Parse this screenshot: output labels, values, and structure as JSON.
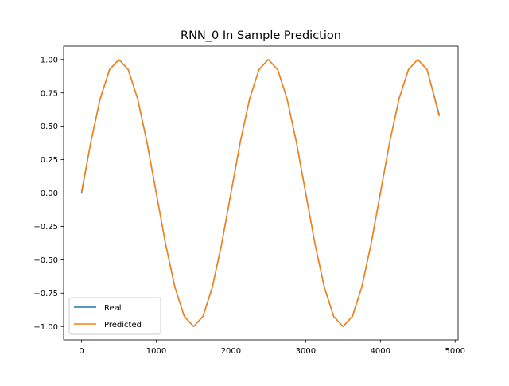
{
  "chart_data": {
    "type": "line",
    "title": "RNN_0 In Sample Prediction",
    "xlabel": "",
    "ylabel": "",
    "xlim": [
      -240,
      5040
    ],
    "ylim": [
      -1.1,
      1.1
    ],
    "x_ticks": [
      0,
      1000,
      2000,
      3000,
      4000,
      5000
    ],
    "x_tick_labels": [
      "0",
      "1000",
      "2000",
      "3000",
      "4000",
      "5000"
    ],
    "y_ticks": [
      1.0,
      0.75,
      0.5,
      0.25,
      0.0,
      -0.25,
      -0.5,
      -0.75,
      -1.0
    ],
    "y_tick_labels": [
      "1.00",
      "0.75",
      "0.50",
      "0.25",
      "0.00",
      "−0.25",
      "−0.50",
      "−0.75",
      "−1.00"
    ],
    "grid": false,
    "legend_position": "lower-left",
    "series": [
      {
        "name": "Real",
        "color": "#1f77b4",
        "x": [
          0,
          125,
          250,
          375,
          500,
          625,
          750,
          875,
          1000,
          1125,
          1250,
          1375,
          1500,
          1625,
          1750,
          1875,
          2000,
          2125,
          2250,
          2375,
          2500,
          2625,
          2750,
          2875,
          3000,
          3125,
          3250,
          3375,
          3500,
          3625,
          3750,
          3875,
          4000,
          4125,
          4250,
          4375,
          4500,
          4625,
          4785
        ],
        "y": [
          0.0,
          0.383,
          0.707,
          0.924,
          1.0,
          0.924,
          0.707,
          0.383,
          0.0,
          -0.383,
          -0.707,
          -0.924,
          -1.0,
          -0.924,
          -0.707,
          -0.383,
          0.0,
          0.383,
          0.707,
          0.924,
          1.0,
          0.924,
          0.707,
          0.383,
          0.0,
          -0.383,
          -0.707,
          -0.924,
          -1.0,
          -0.924,
          -0.707,
          -0.383,
          0.0,
          0.383,
          0.707,
          0.924,
          1.0,
          0.924,
          0.59
        ]
      },
      {
        "name": "Predicted",
        "color": "#ff7f0e",
        "x": [
          0,
          125,
          250,
          375,
          500,
          625,
          750,
          875,
          1000,
          1125,
          1250,
          1375,
          1500,
          1625,
          1750,
          1875,
          2000,
          2125,
          2250,
          2375,
          2500,
          2625,
          2750,
          2875,
          3000,
          3125,
          3250,
          3375,
          3500,
          3625,
          3750,
          3875,
          4000,
          4125,
          4250,
          4375,
          4500,
          4625,
          4785
        ],
        "y": [
          0.01,
          0.383,
          0.707,
          0.924,
          1.0,
          0.924,
          0.707,
          0.383,
          0.0,
          -0.383,
          -0.707,
          -0.924,
          -1.0,
          -0.924,
          -0.707,
          -0.383,
          0.0,
          0.383,
          0.707,
          0.924,
          1.0,
          0.924,
          0.707,
          0.383,
          0.0,
          -0.383,
          -0.707,
          -0.924,
          -1.0,
          -0.924,
          -0.707,
          -0.383,
          0.0,
          0.383,
          0.707,
          0.924,
          1.0,
          0.924,
          0.58
        ]
      }
    ]
  }
}
